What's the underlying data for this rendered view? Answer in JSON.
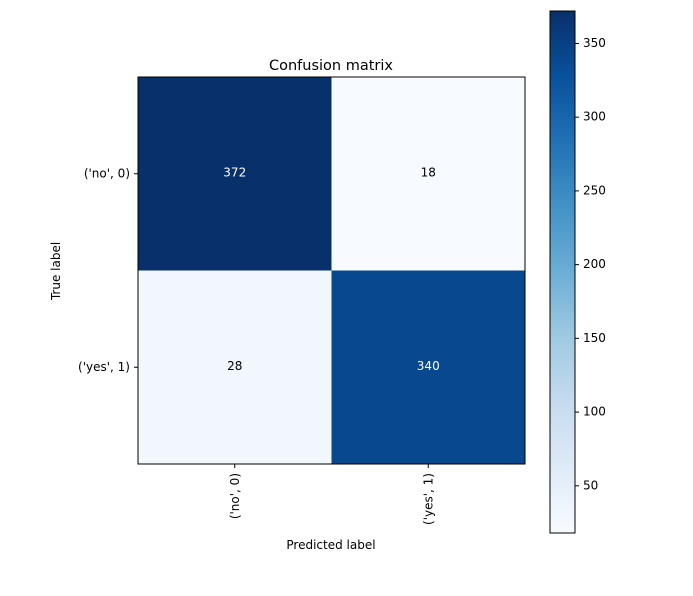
{
  "chart_data": {
    "type": "heatmap",
    "title": "Confusion matrix",
    "xlabel": "Predicted label",
    "ylabel": "True label",
    "x_categories": [
      "('no', 0)",
      "('yes', 1)"
    ],
    "y_categories": [
      "('no', 0)",
      "('yes', 1)"
    ],
    "values": [
      [
        372,
        18
      ],
      [
        28,
        340
      ]
    ],
    "colormap": "Blues",
    "color_low": "#f7fbff",
    "color_high": "#08306b",
    "colorbar": {
      "range": [
        18,
        372
      ],
      "ticks": [
        50,
        100,
        150,
        200,
        250,
        300,
        350
      ]
    },
    "grid": false
  }
}
